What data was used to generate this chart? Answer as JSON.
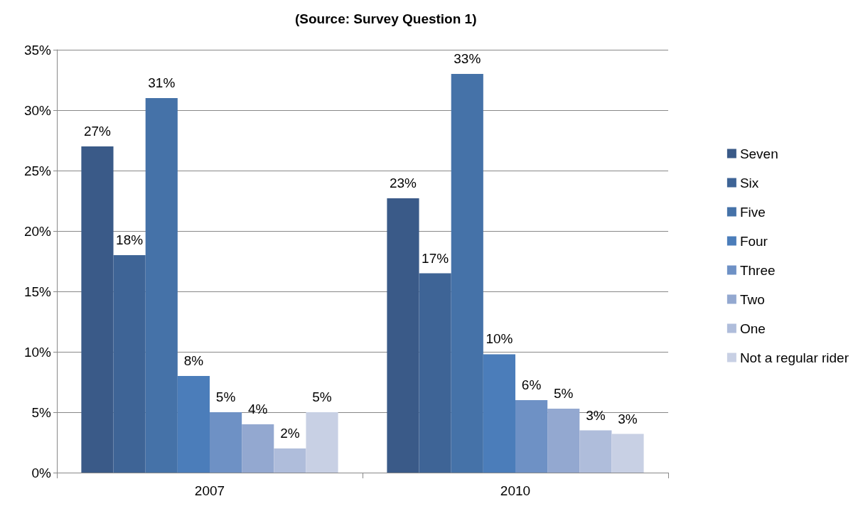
{
  "chart_data": {
    "type": "bar",
    "title": "(Source: Survey Question 1)",
    "categories": [
      "2007",
      "2010"
    ],
    "series": [
      {
        "name": "Seven",
        "color": "#3a5a88",
        "values": [
          27,
          22.7
        ],
        "value_labels": [
          "27%",
          "23%"
        ]
      },
      {
        "name": "Six",
        "color": "#3e6496",
        "values": [
          18,
          16.5
        ],
        "value_labels": [
          "18%",
          "17%"
        ]
      },
      {
        "name": "Five",
        "color": "#4572a8",
        "values": [
          31,
          33
        ],
        "value_labels": [
          "31%",
          "33%"
        ]
      },
      {
        "name": "Four",
        "color": "#4b7dba",
        "values": [
          8,
          9.8
        ],
        "value_labels": [
          "8%",
          "10%"
        ]
      },
      {
        "name": "Three",
        "color": "#6e91c5",
        "values": [
          5,
          6
        ],
        "value_labels": [
          "5%",
          "6%"
        ]
      },
      {
        "name": "Two",
        "color": "#93a8d0",
        "values": [
          4,
          5.3
        ],
        "value_labels": [
          "4%",
          "5%"
        ]
      },
      {
        "name": "One",
        "color": "#afbddb",
        "values": [
          2,
          3.5
        ],
        "value_labels": [
          "2%",
          "3%"
        ]
      },
      {
        "name": "Not a regular rider",
        "color": "#c8d0e4",
        "values": [
          5,
          3.2
        ],
        "value_labels": [
          "5%",
          "3%"
        ]
      }
    ],
    "ylim": [
      0,
      35
    ],
    "yticks": [
      {
        "value": 0,
        "label": "0%"
      },
      {
        "value": 5,
        "label": "5%"
      },
      {
        "value": 10,
        "label": "10%"
      },
      {
        "value": 15,
        "label": "15%"
      },
      {
        "value": 20,
        "label": "20%"
      },
      {
        "value": 25,
        "label": "25%"
      },
      {
        "value": 30,
        "label": "30%"
      },
      {
        "value": 35,
        "label": "35%"
      }
    ],
    "grid": "y",
    "legend": "right"
  }
}
